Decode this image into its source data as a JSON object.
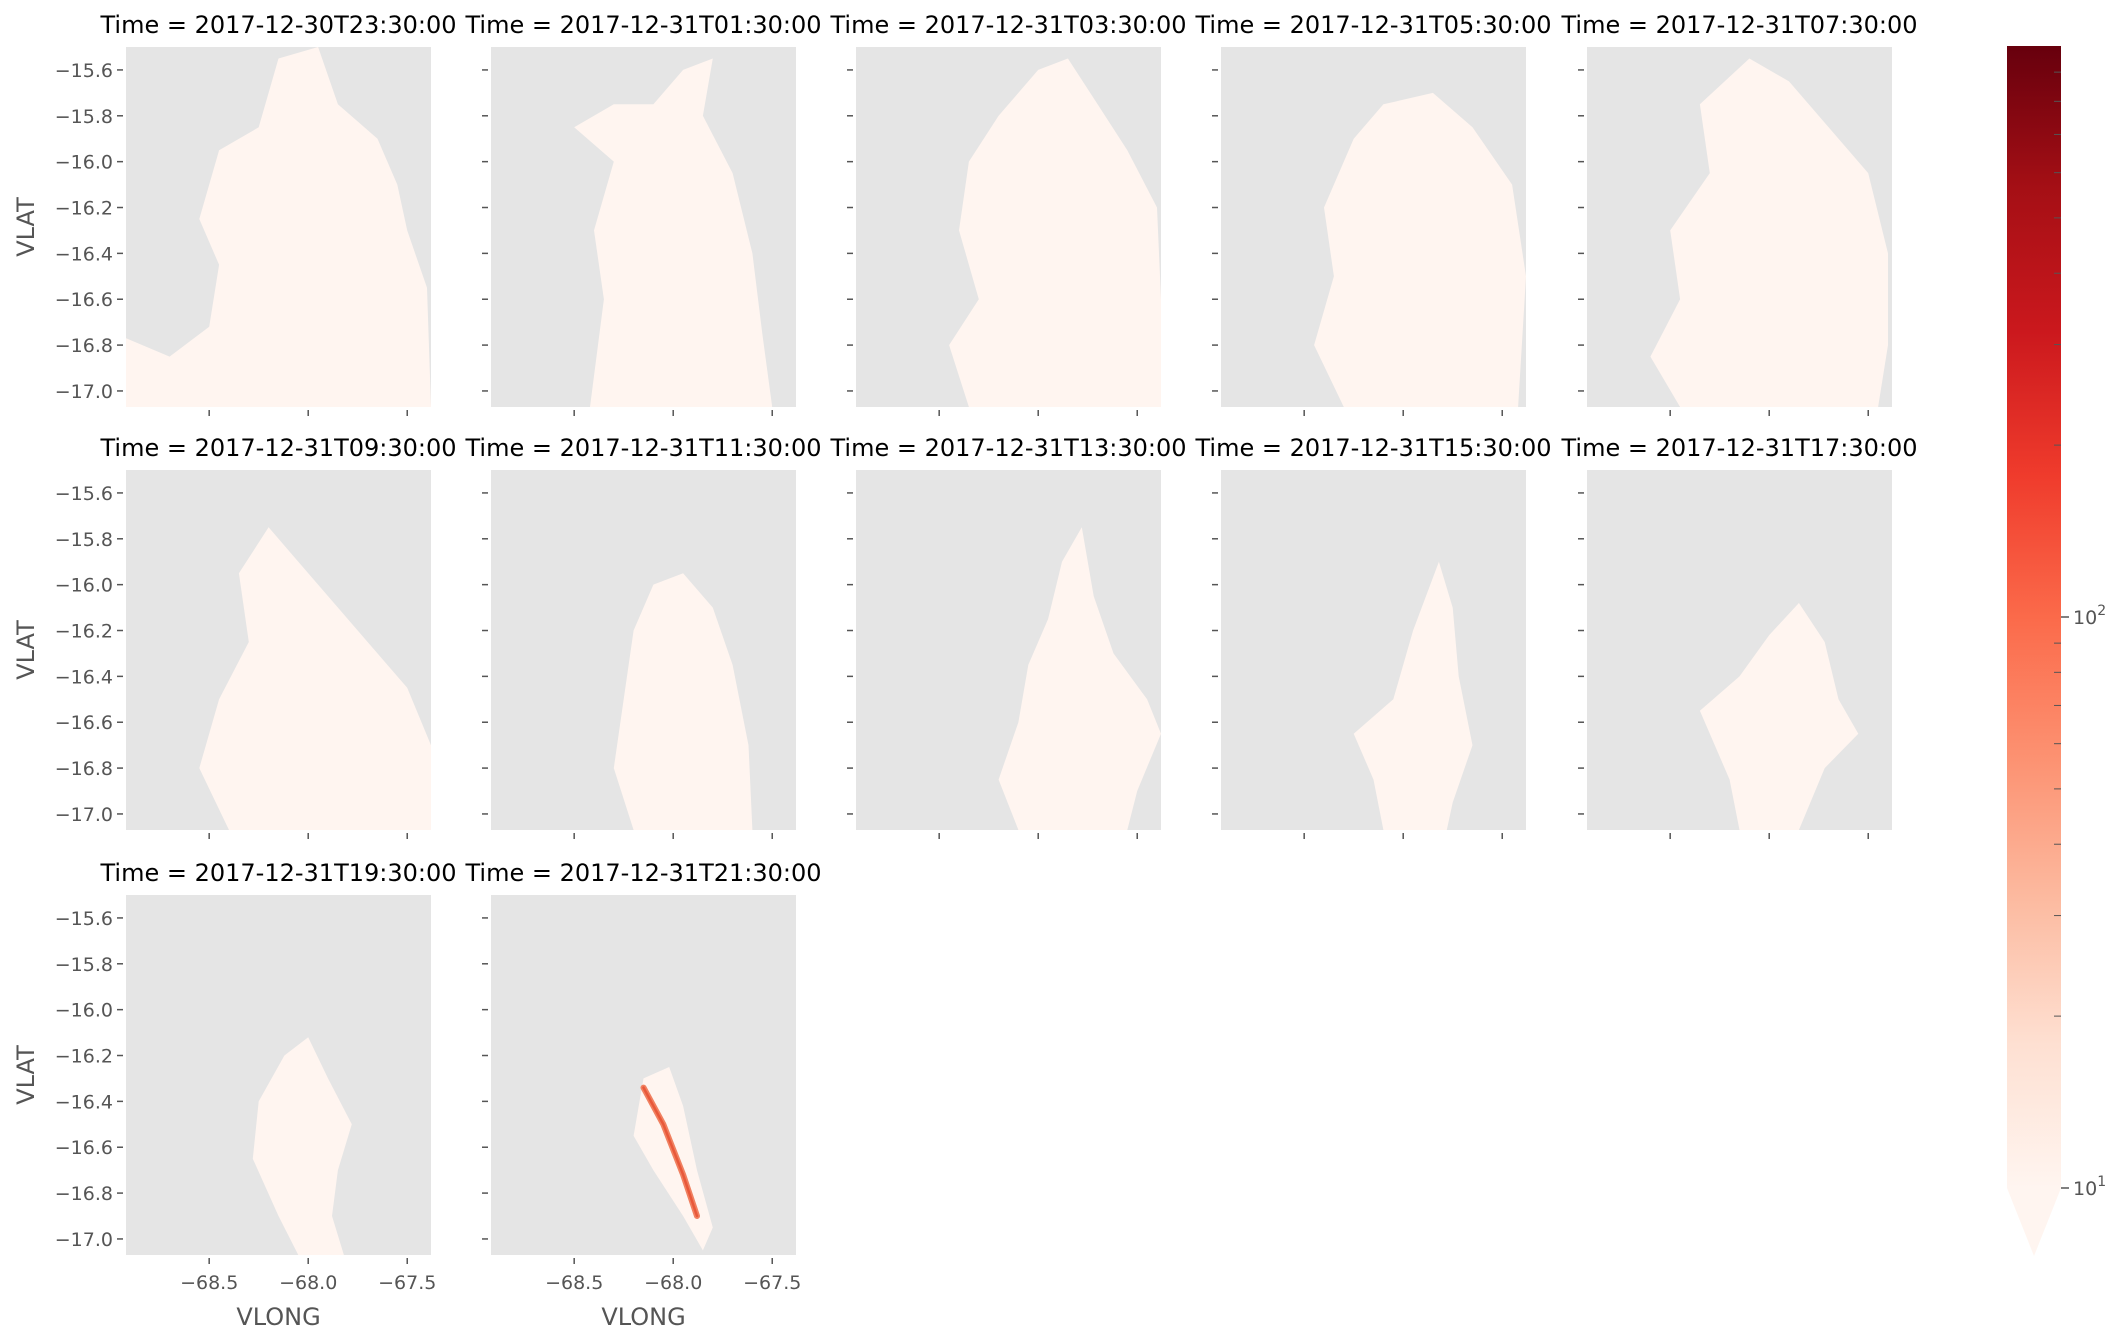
{
  "chart_data": {
    "type": "heatmap",
    "layout": "facet grid, 3 rows x 5 columns, 12 panels",
    "facet_label_prefix": "Time = ",
    "facets": [
      "2017-12-30T23:30:00",
      "2017-12-31T01:30:00",
      "2017-12-31T03:30:00",
      "2017-12-31T05:30:00",
      "2017-12-31T07:30:00",
      "2017-12-31T09:30:00",
      "2017-12-31T11:30:00",
      "2017-12-31T13:30:00",
      "2017-12-31T15:30:00",
      "2017-12-31T17:30:00",
      "2017-12-31T19:30:00",
      "2017-12-31T21:30:00"
    ],
    "xlabel": "VLONG",
    "ylabel": "VLAT",
    "xlim": [
      -68.92,
      -67.38
    ],
    "ylim": [
      -17.07,
      -15.5
    ],
    "xticks": [
      -68.5,
      -68.0,
      -67.5
    ],
    "xtick_labels": [
      "−68.5",
      "−68.0",
      "−67.5"
    ],
    "yticks": [
      -15.6,
      -15.8,
      -16.0,
      -16.2,
      -16.4,
      -16.6,
      -16.8,
      -17.0
    ],
    "ytick_labels": [
      "−15.6",
      "−15.8",
      "−16.0",
      "−16.2",
      "−16.4",
      "−16.6",
      "−16.8",
      "−17.0"
    ],
    "colormap": "Reds",
    "color_scale": "log",
    "colorbar_range": [
      10,
      1000
    ],
    "colorbar_extend": "min",
    "colorbar_ticks": [
      {
        "value": 10,
        "base": "10",
        "exp": "1"
      },
      {
        "value": 100,
        "base": "10",
        "exp": "2"
      }
    ],
    "nan_color": "#e5e5e5",
    "grid": false,
    "note_values": "most non-missing cells sit near the bottom of the color scale; the last panel has a streak reaching roughly 100"
  },
  "colors": {
    "panel_background": "#e5e5e5",
    "low": "#fff5f0",
    "high": "#67000d",
    "text": "#555555"
  }
}
